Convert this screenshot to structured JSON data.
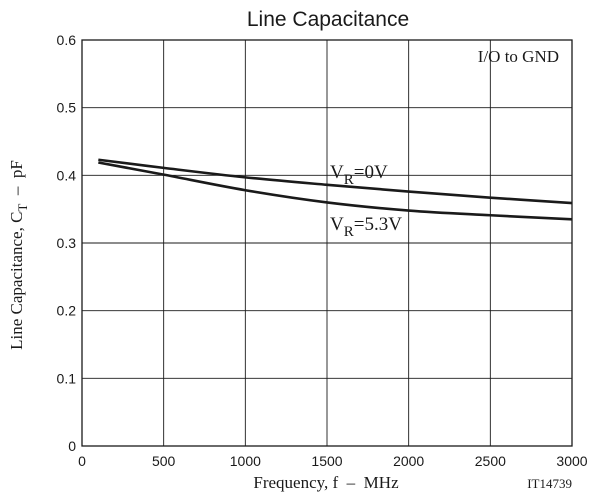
{
  "chart_data": {
    "type": "line",
    "title": "Line Capacitance",
    "xlabel": "Frequency, f  –  MHz",
    "ylabel": {
      "prefix": "Line Capacitance, C",
      "sub": "T",
      "suffix": "  –  pF"
    },
    "xlim": [
      0,
      3000
    ],
    "ylim": [
      0,
      0.6
    ],
    "xticks": [
      0,
      500,
      1000,
      1500,
      2000,
      2500,
      3000
    ],
    "yticks": [
      0,
      0.1,
      0.2,
      0.3,
      0.4,
      0.5,
      0.6
    ],
    "xtick_labels": [
      "0",
      "500",
      "1000",
      "1500",
      "2000",
      "2500",
      "3000"
    ],
    "ytick_labels": [
      "0",
      "0.1",
      "0.2",
      "0.3",
      "0.4",
      "0.5",
      "0.6"
    ],
    "grid": true,
    "annotation": "I/O to GND",
    "figure_id": "IT14739",
    "series": [
      {
        "label": {
          "main": "V",
          "sub": "R",
          "rest": "=0V"
        },
        "x": [
          100,
          500,
          1000,
          1500,
          2000,
          2500,
          3000
        ],
        "values": [
          0.423,
          0.411,
          0.397,
          0.386,
          0.376,
          0.367,
          0.359
        ]
      },
      {
        "label": {
          "main": "V",
          "sub": "R",
          "rest": "=5.3V"
        },
        "x": [
          100,
          500,
          1000,
          1500,
          2000,
          2500,
          3000
        ],
        "values": [
          0.419,
          0.401,
          0.378,
          0.36,
          0.348,
          0.341,
          0.335
        ]
      }
    ],
    "colors": {
      "line": "#1a1a1a",
      "grid": "#1a1a1a"
    }
  }
}
